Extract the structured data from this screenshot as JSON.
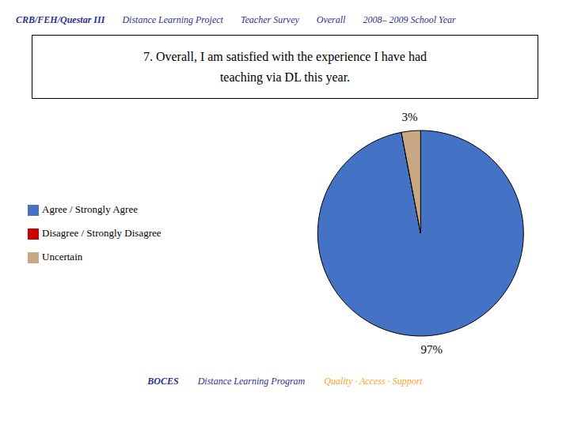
{
  "chart_data": {
    "type": "pie",
    "title": "7. Overall, I am satisfied with the experience I have had\nteaching via DL this year.",
    "subtitle": [
      {
        "text": "CRB/FEH/Questar III",
        "color": "#2E3092"
      },
      {
        "text": "Distance Learning Project",
        "color": "#2E3092"
      },
      {
        "text": "Teacher Survey",
        "color": "#2E3092"
      },
      {
        "text": "Overall",
        "color": "#2E3092"
      },
      {
        "text": "2008– 2009 School Year",
        "color": "#2E3092"
      }
    ],
    "annotations": [
      {
        "text": "BOCES",
        "color": "#2E3092"
      },
      {
        "text": "Distance Learning Program",
        "color": "#2E3092"
      },
      {
        "text": "Quality · Access · Support",
        "color": "#F5A623"
      }
    ],
    "categories": [
      "Agree / Strongly Agree",
      "Disagree / Strongly Disagree",
      "Uncertain"
    ],
    "values": [
      97,
      0.001,
      3
    ],
    "value_labels": [
      "97%",
      null,
      "3%"
    ],
    "colors": [
      "#4472C4",
      "#CC0000",
      "#C8A882"
    ],
    "data_labels": true,
    "legend": "left"
  }
}
